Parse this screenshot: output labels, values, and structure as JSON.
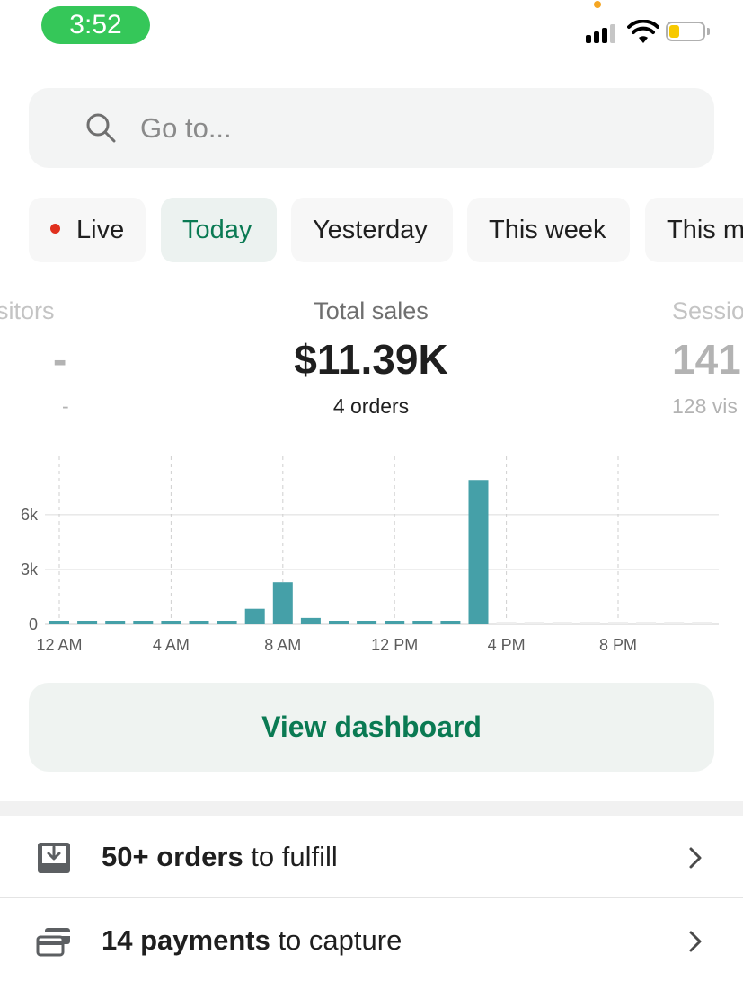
{
  "status_bar": {
    "time": "3:52"
  },
  "search": {
    "placeholder": "Go to..."
  },
  "date_filters": [
    {
      "label": "Live"
    },
    {
      "label": "Today"
    },
    {
      "label": "Yesterday"
    },
    {
      "label": "This week"
    },
    {
      "label": "This m"
    }
  ],
  "metrics": {
    "left": {
      "label": "isitors",
      "value": "-",
      "sub": "-"
    },
    "center": {
      "label": "Total sales",
      "value": "$11.39K",
      "sub": "4 orders"
    },
    "right": {
      "label": "Sessio",
      "value": "141",
      "sub": "128 vis"
    }
  },
  "chart_data": {
    "type": "bar",
    "title": "",
    "xlabel": "",
    "ylabel": "",
    "x_tick_labels": [
      "12 AM",
      "4 AM",
      "8 AM",
      "12 PM",
      "4 PM",
      "8 PM"
    ],
    "y_tick_labels": [
      "0",
      "3k",
      "6k"
    ],
    "ylim": [
      0,
      8600
    ],
    "grid": true,
    "colors": {
      "bar": "#45a0a8",
      "future": "#eeeeee"
    },
    "hours": [
      0,
      1,
      2,
      3,
      4,
      5,
      6,
      7,
      8,
      9,
      10,
      11,
      12,
      13,
      14,
      15,
      16,
      17,
      18,
      19,
      20,
      21,
      22,
      23
    ],
    "values": [
      150,
      150,
      150,
      150,
      150,
      150,
      150,
      850,
      2300,
      350,
      150,
      150,
      150,
      150,
      150,
      7900,
      100,
      100,
      100,
      100,
      100,
      100,
      100,
      100
    ],
    "future_from_hour": 16
  },
  "actions": {
    "view_dashboard": "View dashboard"
  },
  "tasks": [
    {
      "bold": "50+ orders",
      "rest": " to fulfill"
    },
    {
      "bold": "14 payments",
      "rest": " to capture"
    }
  ]
}
